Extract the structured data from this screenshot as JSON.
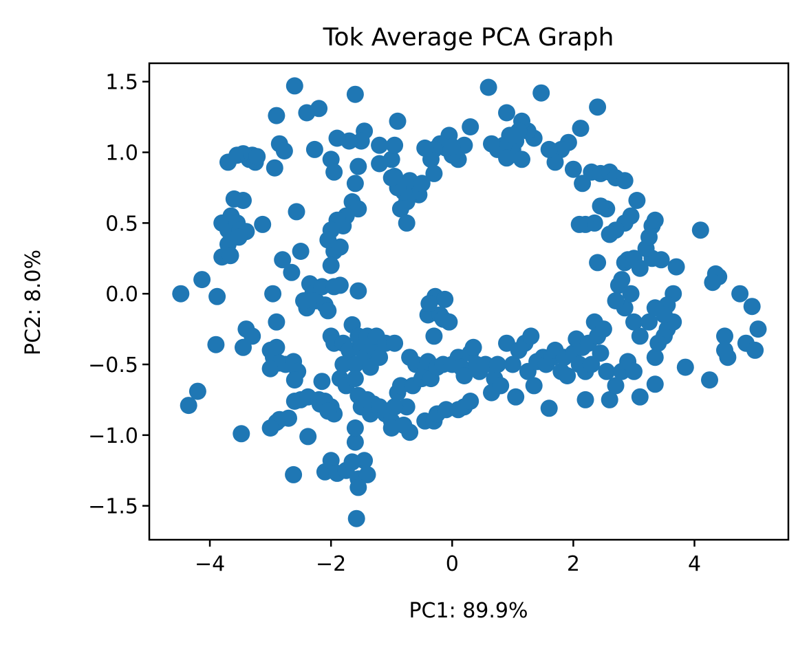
{
  "chart_data": {
    "type": "scatter",
    "title": "Tok Average PCA Graph",
    "xlabel": "PC1: 89.9%",
    "ylabel": "PC2: 8.0%",
    "xlim": [
      -5.0,
      5.55
    ],
    "ylim": [
      -1.74,
      1.63
    ],
    "xticks": [
      -4,
      -2,
      0,
      2,
      4
    ],
    "xtick_labels": [
      "−4",
      "−2",
      "0",
      "2",
      "4"
    ],
    "yticks": [
      -1.5,
      -1.0,
      -0.5,
      0.0,
      0.5,
      1.0,
      1.5
    ],
    "ytick_labels": [
      "−1.5",
      "−1.0",
      "−0.5",
      "0.0",
      "0.5",
      "1.0",
      "1.5"
    ],
    "grid": false,
    "legend": "none",
    "marker_color": "#1f77b4",
    "points": [
      [
        -4.48,
        0.0
      ],
      [
        -4.13,
        0.1
      ],
      [
        -3.88,
        -0.02
      ],
      [
        -3.9,
        -0.36
      ],
      [
        -4.35,
        -0.79
      ],
      [
        -4.2,
        -0.69
      ],
      [
        -3.48,
        -0.99
      ],
      [
        -3.8,
        0.26
      ],
      [
        -3.7,
        0.35
      ],
      [
        -3.66,
        0.27
      ],
      [
        -3.8,
        0.5
      ],
      [
        -3.7,
        0.45
      ],
      [
        -3.65,
        0.55
      ],
      [
        -3.6,
        0.41
      ],
      [
        -3.55,
        0.5
      ],
      [
        -3.5,
        0.45
      ],
      [
        -3.45,
        0.66
      ],
      [
        -3.6,
        0.67
      ],
      [
        -3.4,
        0.44
      ],
      [
        -3.13,
        0.49
      ],
      [
        -3.52,
        0.4
      ],
      [
        -3.7,
        0.93
      ],
      [
        -3.55,
        0.98
      ],
      [
        -3.45,
        0.99
      ],
      [
        -3.35,
        0.95
      ],
      [
        -3.3,
        0.98
      ],
      [
        -3.25,
        0.93
      ],
      [
        -3.22,
        0.97
      ],
      [
        -2.93,
        0.89
      ],
      [
        -2.9,
        1.26
      ],
      [
        -2.85,
        1.06
      ],
      [
        -2.77,
        1.01
      ],
      [
        -2.6,
        1.47
      ],
      [
        -2.4,
        1.28
      ],
      [
        -2.2,
        1.31
      ],
      [
        -2.27,
        1.02
      ],
      [
        -2.57,
        0.58
      ],
      [
        -2.5,
        0.3
      ],
      [
        -2.8,
        0.24
      ],
      [
        -2.65,
        0.15
      ],
      [
        -2.96,
        0.0
      ],
      [
        -3.4,
        -0.25
      ],
      [
        -3.3,
        -0.3
      ],
      [
        -3.45,
        -0.38
      ],
      [
        -2.9,
        -0.2
      ],
      [
        -3.0,
        -0.4
      ],
      [
        -2.95,
        -0.45
      ],
      [
        -2.9,
        -0.38
      ],
      [
        -2.85,
        -0.49
      ],
      [
        -3.0,
        -0.53
      ],
      [
        -2.75,
        -0.5
      ],
      [
        -2.62,
        -0.48
      ],
      [
        -2.55,
        -0.55
      ],
      [
        -2.6,
        -0.61
      ],
      [
        -2.5,
        -0.75
      ],
      [
        -2.6,
        -0.76
      ],
      [
        -2.38,
        -0.73
      ],
      [
        -2.7,
        -0.88
      ],
      [
        -2.85,
        -0.89
      ],
      [
        -2.9,
        -0.91
      ],
      [
        -3.0,
        -0.95
      ],
      [
        -2.38,
        -1.01
      ],
      [
        -2.62,
        -1.28
      ],
      [
        -2.15,
        -0.62
      ],
      [
        -2.2,
        -0.75
      ],
      [
        -2.18,
        -0.78
      ],
      [
        -2.1,
        -0.76
      ],
      [
        -2.0,
        -0.8
      ],
      [
        -1.95,
        -0.85
      ],
      [
        -2.05,
        -0.83
      ],
      [
        -2.1,
        -1.26
      ],
      [
        -2.0,
        -1.18
      ],
      [
        -1.9,
        -1.27
      ],
      [
        -1.75,
        -1.25
      ],
      [
        -1.65,
        -1.19
      ],
      [
        -1.55,
        -1.31
      ],
      [
        -1.45,
        -1.18
      ],
      [
        -1.4,
        -1.28
      ],
      [
        -1.55,
        -1.37
      ],
      [
        -1.58,
        -1.59
      ],
      [
        -1.6,
        -1.05
      ],
      [
        -1.6,
        -0.95
      ],
      [
        -2.35,
        0.07
      ],
      [
        -2.3,
        0.0
      ],
      [
        -2.25,
        -0.05
      ],
      [
        -2.4,
        -0.1
      ],
      [
        -2.45,
        -0.05
      ],
      [
        -2.15,
        0.05
      ],
      [
        -2.1,
        -0.08
      ],
      [
        -2.05,
        -0.12
      ],
      [
        -1.95,
        0.05
      ],
      [
        -1.85,
        0.06
      ],
      [
        -2.0,
        -0.3
      ],
      [
        -1.95,
        -0.35
      ],
      [
        -1.8,
        -0.35
      ],
      [
        -1.7,
        -0.4
      ],
      [
        -1.8,
        -0.5
      ],
      [
        -1.6,
        -0.5
      ],
      [
        -1.65,
        -0.22
      ],
      [
        -1.55,
        -0.3
      ],
      [
        -1.5,
        -0.38
      ],
      [
        -1.45,
        -0.45
      ],
      [
        -1.4,
        -0.3
      ],
      [
        -1.35,
        -0.52
      ],
      [
        -1.3,
        -0.38
      ],
      [
        -1.25,
        -0.3
      ],
      [
        -1.2,
        -0.45
      ],
      [
        -1.1,
        -0.35
      ],
      [
        -0.95,
        -0.35
      ],
      [
        -1.55,
        0.02
      ],
      [
        -1.85,
        -0.6
      ],
      [
        -1.75,
        -0.65
      ],
      [
        -1.6,
        -0.6
      ],
      [
        -1.55,
        -0.72
      ],
      [
        -1.5,
        -0.8
      ],
      [
        -1.4,
        -0.75
      ],
      [
        -1.35,
        -0.85
      ],
      [
        -1.3,
        -0.78
      ],
      [
        -1.2,
        -0.8
      ],
      [
        -1.1,
        -0.85
      ],
      [
        -1.0,
        -0.9
      ],
      [
        -0.95,
        -0.8
      ],
      [
        -0.9,
        -0.7
      ],
      [
        -0.85,
        -0.65
      ],
      [
        -0.75,
        -0.8
      ],
      [
        -0.7,
        -0.98
      ],
      [
        -0.8,
        -0.93
      ],
      [
        -0.65,
        -0.65
      ],
      [
        -0.5,
        -0.6
      ],
      [
        -0.45,
        -0.9
      ],
      [
        -0.3,
        -0.9
      ],
      [
        -0.25,
        -0.85
      ],
      [
        -0.1,
        -0.82
      ],
      [
        0.1,
        -0.82
      ],
      [
        0.2,
        -0.8
      ],
      [
        0.3,
        -0.76
      ],
      [
        -1.0,
        -0.95
      ],
      [
        -0.95,
        -0.8
      ],
      [
        -0.4,
        -0.15
      ],
      [
        -0.3,
        -0.3
      ],
      [
        -0.2,
        -0.15
      ],
      [
        -0.15,
        -0.18
      ],
      [
        -0.05,
        -0.2
      ],
      [
        -0.28,
        -0.02
      ],
      [
        -0.12,
        -0.04
      ],
      [
        -0.38,
        -0.07
      ],
      [
        -0.7,
        -0.45
      ],
      [
        -0.6,
        -0.5
      ],
      [
        -0.45,
        -0.55
      ],
      [
        -0.4,
        -0.48
      ],
      [
        -0.35,
        -0.6
      ],
      [
        -0.25,
        -0.52
      ],
      [
        -0.15,
        -0.5
      ],
      [
        0.0,
        -0.5
      ],
      [
        0.1,
        -0.45
      ],
      [
        0.15,
        -0.52
      ],
      [
        0.2,
        -0.58
      ],
      [
        0.3,
        -0.42
      ],
      [
        0.35,
        -0.38
      ],
      [
        0.4,
        -0.5
      ],
      [
        0.45,
        -0.55
      ],
      [
        0.55,
        -0.5
      ],
      [
        0.7,
        -0.6
      ],
      [
        0.65,
        -0.7
      ],
      [
        0.8,
        -0.65
      ],
      [
        0.75,
        -0.5
      ],
      [
        0.9,
        -0.35
      ],
      [
        1.0,
        -0.5
      ],
      [
        1.05,
        -0.73
      ],
      [
        1.1,
        -0.4
      ],
      [
        1.2,
        -0.35
      ],
      [
        1.25,
        -0.55
      ],
      [
        1.3,
        -0.3
      ],
      [
        1.35,
        -0.65
      ],
      [
        1.4,
        -0.48
      ],
      [
        1.5,
        -0.45
      ],
      [
        1.55,
        -0.5
      ],
      [
        1.6,
        -0.81
      ],
      [
        1.65,
        -0.45
      ],
      [
        1.7,
        -0.4
      ],
      [
        1.8,
        -0.55
      ],
      [
        1.85,
        -0.45
      ],
      [
        1.9,
        -0.58
      ],
      [
        2.0,
        -0.42
      ],
      [
        2.05,
        -0.32
      ],
      [
        2.1,
        -0.5
      ],
      [
        2.15,
        -0.38
      ],
      [
        2.2,
        -0.55
      ],
      [
        2.25,
        -0.35
      ],
      [
        2.3,
        -0.5
      ],
      [
        2.35,
        -0.2
      ],
      [
        2.4,
        -0.3
      ],
      [
        2.45,
        -0.42
      ],
      [
        2.5,
        -0.25
      ],
      [
        2.55,
        -0.55
      ],
      [
        2.2,
        -0.75
      ],
      [
        2.6,
        -0.75
      ],
      [
        2.7,
        -0.65
      ],
      [
        2.8,
        -0.55
      ],
      [
        2.9,
        -0.48
      ],
      [
        3.0,
        -0.55
      ],
      [
        3.1,
        -0.73
      ],
      [
        3.35,
        -0.64
      ],
      [
        3.35,
        -0.45
      ],
      [
        3.4,
        -0.35
      ],
      [
        3.5,
        -0.3
      ],
      [
        3.55,
        -0.25
      ],
      [
        3.65,
        -0.2
      ],
      [
        3.85,
        -0.52
      ],
      [
        4.25,
        -0.61
      ],
      [
        4.5,
        -0.3
      ],
      [
        4.5,
        -0.4
      ],
      [
        4.55,
        -0.45
      ],
      [
        4.85,
        -0.35
      ],
      [
        5.0,
        -0.4
      ],
      [
        5.05,
        -0.25
      ],
      [
        4.95,
        -0.09
      ],
      [
        4.75,
        0.0
      ],
      [
        4.35,
        0.14
      ],
      [
        4.4,
        0.12
      ],
      [
        4.3,
        0.08
      ],
      [
        4.1,
        0.45
      ],
      [
        3.7,
        0.19
      ],
      [
        3.65,
        0.0
      ],
      [
        3.55,
        -0.08
      ],
      [
        3.45,
        0.24
      ],
      [
        3.3,
        0.25
      ],
      [
        3.2,
        0.32
      ],
      [
        3.25,
        0.4
      ],
      [
        3.3,
        0.48
      ],
      [
        3.35,
        0.52
      ],
      [
        3.05,
        0.66
      ],
      [
        2.95,
        0.55
      ],
      [
        2.85,
        0.5
      ],
      [
        2.7,
        0.45
      ],
      [
        2.6,
        0.42
      ],
      [
        2.55,
        0.6
      ],
      [
        2.45,
        0.62
      ],
      [
        2.35,
        0.5
      ],
      [
        2.2,
        0.49
      ],
      [
        2.1,
        0.49
      ],
      [
        2.4,
        0.22
      ],
      [
        2.75,
        0.06
      ],
      [
        2.8,
        0.1
      ],
      [
        2.85,
        0.22
      ],
      [
        2.9,
        0.24
      ],
      [
        3.0,
        0.25
      ],
      [
        3.1,
        0.18
      ],
      [
        2.85,
        -0.1
      ],
      [
        3.0,
        -0.2
      ],
      [
        3.1,
        -0.3
      ],
      [
        3.25,
        -0.2
      ],
      [
        3.35,
        -0.1
      ],
      [
        3.5,
        -0.15
      ],
      [
        2.95,
        0.0
      ],
      [
        2.7,
        -0.05
      ],
      [
        2.6,
        0.42
      ],
      [
        2.0,
        0.88
      ],
      [
        2.15,
        0.78
      ],
      [
        2.3,
        0.86
      ],
      [
        2.45,
        0.85
      ],
      [
        2.6,
        0.86
      ],
      [
        2.7,
        0.82
      ],
      [
        2.85,
        0.8
      ],
      [
        2.4,
        1.32
      ],
      [
        2.12,
        1.17
      ],
      [
        1.92,
        1.07
      ],
      [
        1.8,
        1.02
      ],
      [
        1.7,
        0.93
      ],
      [
        1.6,
        1.02
      ],
      [
        1.47,
        1.42
      ],
      [
        1.35,
        1.1
      ],
      [
        1.25,
        1.15
      ],
      [
        1.15,
        1.22
      ],
      [
        1.1,
        1.15
      ],
      [
        1.05,
        1.08
      ],
      [
        1.0,
        1.02
      ],
      [
        0.95,
        1.12
      ],
      [
        0.9,
        1.28
      ],
      [
        0.85,
        1.05
      ],
      [
        0.75,
        1.02
      ],
      [
        0.65,
        1.06
      ],
      [
        0.6,
        1.46
      ],
      [
        0.3,
        1.18
      ],
      [
        0.2,
        1.05
      ],
      [
        0.1,
        0.95
      ],
      [
        0.0,
        0.98
      ],
      [
        -0.05,
        1.12
      ],
      [
        -0.1,
        1.03
      ],
      [
        -0.2,
        1.06
      ],
      [
        -0.3,
        1.02
      ],
      [
        -0.35,
        0.95
      ],
      [
        -0.45,
        1.03
      ],
      [
        -0.55,
        0.7
      ],
      [
        -0.6,
        0.75
      ],
      [
        -0.65,
        0.72
      ],
      [
        -0.7,
        0.8
      ],
      [
        -0.75,
        0.65
      ],
      [
        -0.8,
        0.72
      ],
      [
        -0.85,
        0.6
      ],
      [
        -0.9,
        0.75
      ],
      [
        -0.95,
        0.83
      ],
      [
        -1.0,
        0.82
      ],
      [
        -0.75,
        0.5
      ],
      [
        -1.0,
        0.95
      ],
      [
        -1.2,
        0.92
      ],
      [
        -0.9,
        1.22
      ],
      [
        -0.95,
        1.05
      ],
      [
        -1.2,
        1.05
      ],
      [
        -1.45,
        1.15
      ],
      [
        -1.5,
        1.08
      ],
      [
        -1.55,
        0.9
      ],
      [
        -1.7,
        1.08
      ],
      [
        -1.9,
        1.1
      ],
      [
        -2.0,
        0.95
      ],
      [
        -1.6,
        0.78
      ],
      [
        -1.65,
        0.65
      ],
      [
        -1.55,
        0.6
      ],
      [
        -1.75,
        0.55
      ],
      [
        -1.8,
        0.48
      ],
      [
        -1.9,
        0.52
      ],
      [
        -2.0,
        0.45
      ],
      [
        -2.05,
        0.38
      ],
      [
        -1.95,
        0.3
      ],
      [
        -1.85,
        0.33
      ],
      [
        -2.0,
        0.2
      ],
      [
        -1.95,
        0.86
      ],
      [
        -1.6,
        1.41
      ],
      [
        0.0,
        1.04
      ],
      [
        -0.3,
        0.85
      ],
      [
        -0.5,
        0.78
      ],
      [
        1.15,
        0.95
      ],
      [
        0.9,
        0.96
      ],
      [
        1.0,
        1.12
      ]
    ]
  }
}
